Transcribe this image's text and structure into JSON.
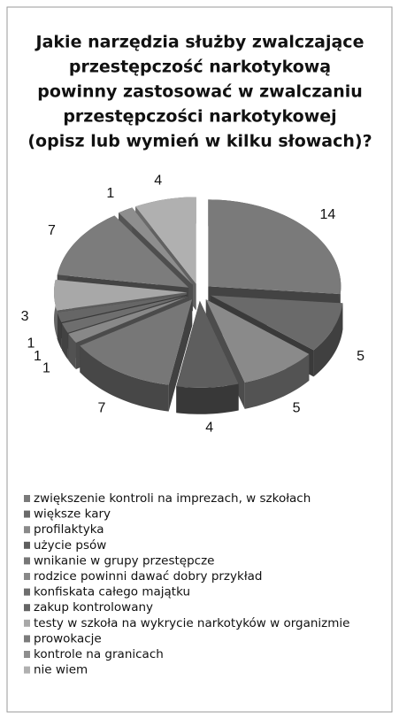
{
  "chart_data": {
    "type": "pie3d",
    "title": [
      "Jakie narzędzia służby zwalczające",
      "przestępczość narkotykową",
      "powinny zastosować w zwalczaniu",
      "przestępczości  narkotykowej",
      "(opisz lub wymień w kilku słowach)?"
    ],
    "categories": [
      "zwiększenie kontroli na imprezach, w szkołach",
      "większe kary",
      "profilaktyka",
      "użycie psów",
      "wnikanie w grupy przestępcze",
      "rodzice powinni dawać dobry przykład",
      "konfiskata całego majątku",
      "zakup kontrolowany",
      "testy w szkoła na wykrycie narkotyków w organizmie",
      "prowokacje",
      "kontrole na granicach",
      " nie wiem"
    ],
    "values": [
      14,
      5,
      5,
      4,
      7,
      1,
      1,
      1,
      3,
      7,
      1,
      4
    ],
    "colors": [
      "#7a7a7a",
      "#6a6a6a",
      "#8a8a8a",
      "#5e5e5e",
      "#777777",
      "#888888",
      "#6e6e6e",
      "#666666",
      "#a8a8a8",
      "#7c7c7c",
      "#8e8e8e",
      "#b0b0b0"
    ],
    "legend": "bottom"
  }
}
